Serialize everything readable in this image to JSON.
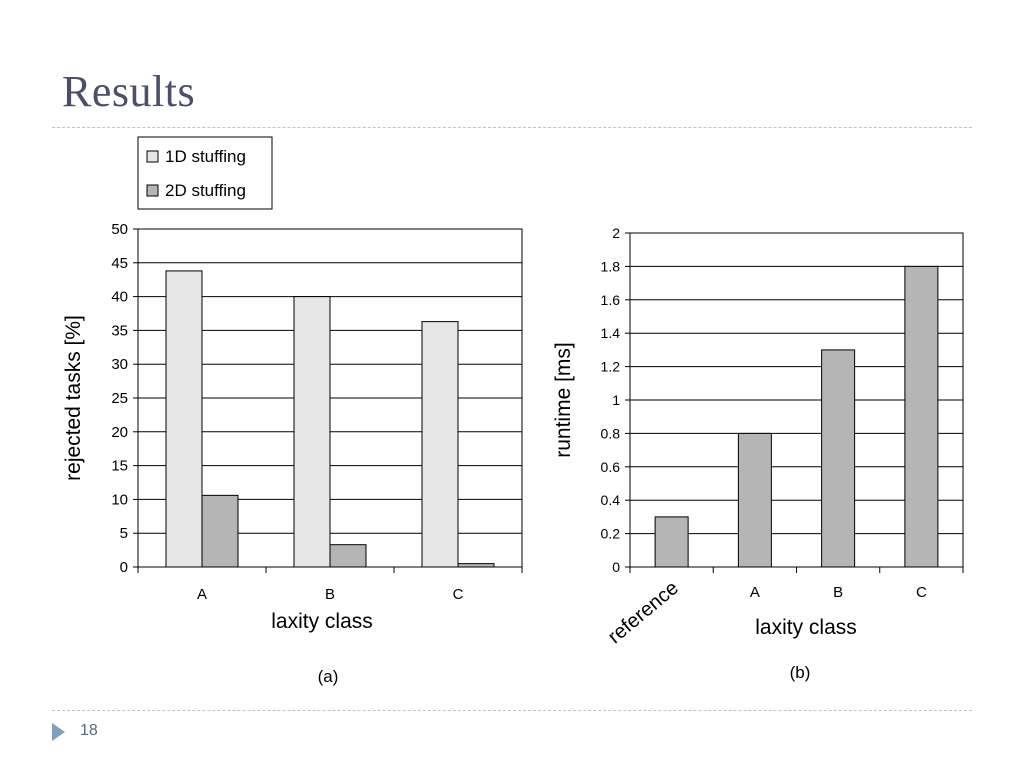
{
  "slide": {
    "title": "Results",
    "page_number": "18"
  },
  "colors": {
    "series_1d": "#e6e6e6",
    "series_2d": "#b5b5b5",
    "grid": "#000000",
    "title": "#4a4f6a"
  },
  "chart_data": [
    {
      "type": "bar",
      "caption": "(a)",
      "categories": [
        "A",
        "B",
        "C"
      ],
      "series": [
        {
          "name": "1D stuffing",
          "values": [
            43.8,
            40.0,
            36.3
          ]
        },
        {
          "name": "2D stuffing",
          "values": [
            10.6,
            3.3,
            0.5
          ]
        }
      ],
      "xlabel": "laxity class",
      "ylabel": "rejected tasks [%]",
      "ylim": [
        0,
        50
      ],
      "yticks": [
        "0",
        "5",
        "10",
        "15",
        "20",
        "25",
        "30",
        "35",
        "40",
        "45",
        "50"
      ],
      "grid": true,
      "legend": "top-left"
    },
    {
      "type": "bar",
      "caption": "(b)",
      "categories": [
        "reference",
        "A",
        "B",
        "C"
      ],
      "series": [
        {
          "values": [
            0.3,
            0.8,
            1.3,
            1.8
          ]
        }
      ],
      "xlabel": "laxity class",
      "ylabel": "runtime [ms]",
      "ylim": [
        0,
        2
      ],
      "yticks": [
        "0",
        "0.2",
        "0.4",
        "0.6",
        "0.8",
        "1",
        "1.2",
        "1.4",
        "1.6",
        "1.8",
        "2"
      ],
      "grid": true
    }
  ]
}
